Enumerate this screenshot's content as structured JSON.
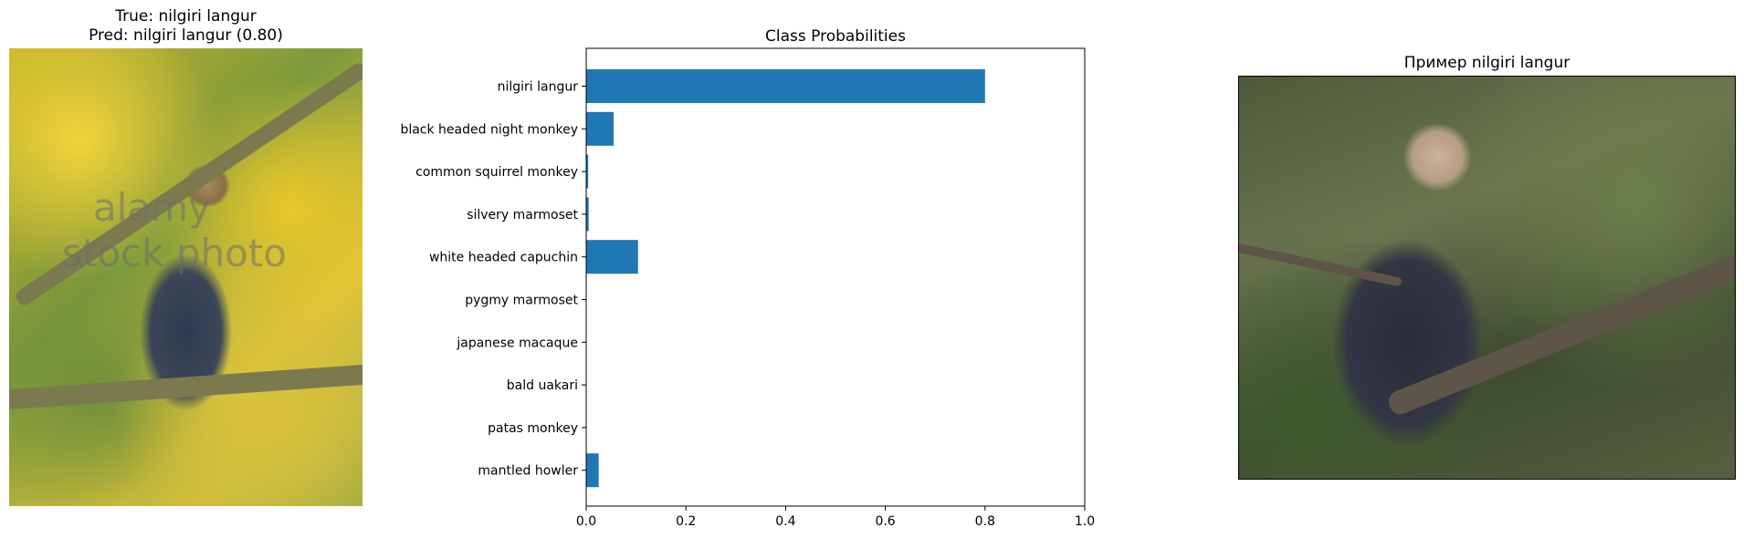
{
  "left_panel": {
    "title_line1": "True: nilgiri langur",
    "title_line2": "Pred: nilgiri langur (0.80)",
    "watermark_line1": "alamy",
    "watermark_line2": "stock photo"
  },
  "right_panel": {
    "title": "Пример nilgiri langur"
  },
  "chart_data": {
    "type": "bar",
    "orientation": "horizontal",
    "title": "Class Probabilities",
    "xlabel": "",
    "ylabel": "",
    "xlim": [
      0,
      1.0
    ],
    "xticks": [
      "0.0",
      "0.2",
      "0.4",
      "0.6",
      "0.8",
      "1.0"
    ],
    "xtick_values": [
      0,
      0.2,
      0.4,
      0.6,
      0.8,
      1.0
    ],
    "categories": [
      "nilgiri langur",
      "black headed night monkey",
      "common squirrel monkey",
      "silvery marmoset",
      "white headed capuchin",
      "pygmy marmoset",
      "japanese macaque",
      "bald uakari",
      "patas monkey",
      "mantled howler"
    ],
    "values": [
      0.8,
      0.055,
      0.004,
      0.005,
      0.104,
      0.0,
      0.0,
      0.0,
      0.0,
      0.025
    ],
    "bar_color": "#1f77b4",
    "grid": false
  }
}
